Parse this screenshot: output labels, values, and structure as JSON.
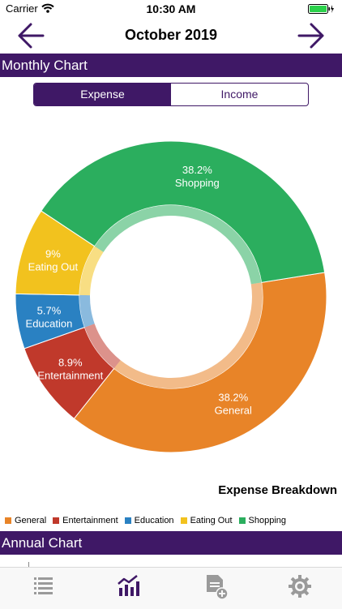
{
  "status": {
    "carrier": "Carrier",
    "time": "10:30 AM"
  },
  "nav": {
    "title": "October 2019",
    "prev_icon": "arrow-left-icon",
    "next_icon": "arrow-right-icon"
  },
  "monthly_header": "Monthly Chart",
  "segmented": {
    "options": [
      "Expense",
      "Income"
    ],
    "selected": "Expense"
  },
  "chart_caption": "Expense Breakdown",
  "annual_header": "Annual Chart",
  "colors": {
    "accent": "#3f1866",
    "general": "#e88428",
    "entertainment": "#c0392b",
    "education": "#2a81c2",
    "eating_out": "#f2c21e",
    "shopping": "#2bae5e"
  },
  "tabs": [
    {
      "icon": "list-icon",
      "active": false
    },
    {
      "icon": "chart-icon",
      "active": true
    },
    {
      "icon": "add-document-icon",
      "active": false
    },
    {
      "icon": "settings-gear-icon",
      "active": false
    }
  ],
  "chart_data": {
    "type": "pie",
    "categories": [
      "General",
      "Entertainment",
      "Education",
      "Eating Out",
      "Shopping"
    ],
    "values": [
      38.2,
      8.9,
      5.7,
      9,
      38.2
    ],
    "labels": [
      "38.2%",
      "8.9%",
      "5.7%",
      "9%",
      "38.2%"
    ],
    "legend": [
      "General",
      "Entertainment",
      "Education",
      "Eating Out",
      "Shopping"
    ],
    "title": "Expense Breakdown"
  }
}
